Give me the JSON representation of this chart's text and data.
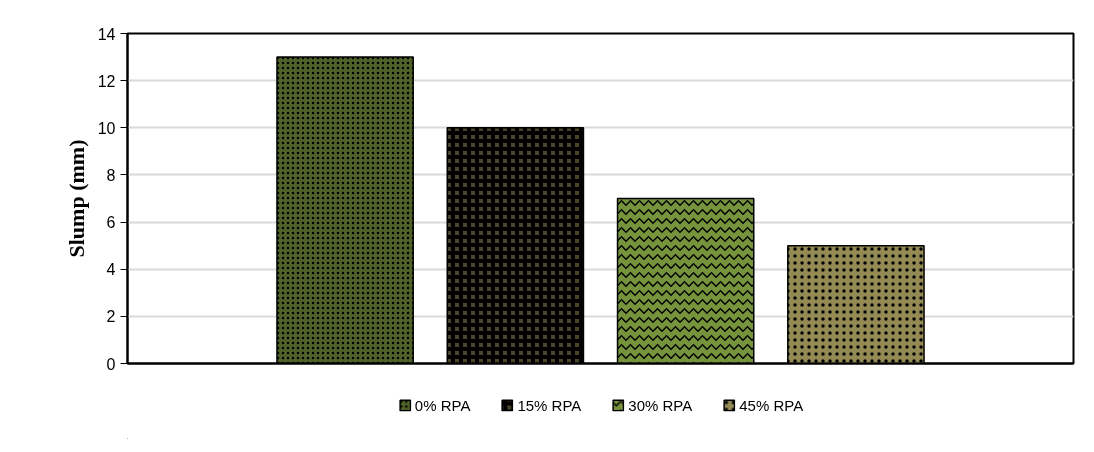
{
  "chart_data": {
    "type": "bar",
    "ylabel": "Slump (mm)",
    "categories": [
      null
    ],
    "series": [
      {
        "name": "0% RPA",
        "color": "#4f6228",
        "values": [
          13
        ]
      },
      {
        "name": "15% RPA",
        "color": "#4a452a",
        "values": [
          10
        ]
      },
      {
        "name": "30% RPA",
        "color": "#77933c",
        "values": [
          7
        ]
      },
      {
        "name": "45% RPA",
        "color": "#948a54",
        "values": [
          5
        ]
      }
    ],
    "ylim": [
      0,
      14
    ],
    "yticks": [
      0,
      2,
      4,
      6,
      8,
      10,
      12,
      14
    ],
    "grid": "y",
    "legend": "bottom"
  }
}
